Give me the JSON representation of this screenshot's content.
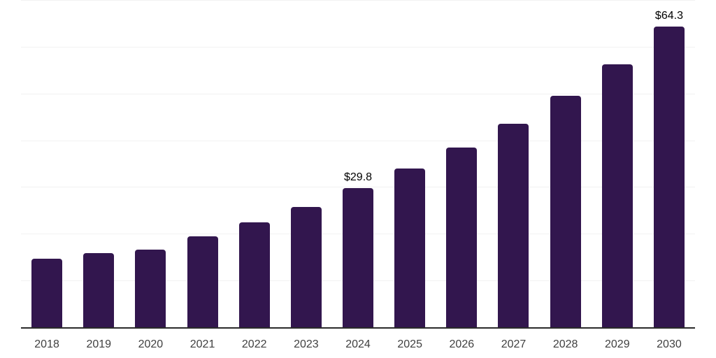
{
  "chart_data": {
    "type": "bar",
    "title": "",
    "categories": [
      "2018",
      "2019",
      "2020",
      "2021",
      "2022",
      "2023",
      "2024",
      "2025",
      "2026",
      "2027",
      "2028",
      "2029",
      "2030"
    ],
    "values": [
      14.7,
      15.8,
      16.6,
      19.4,
      22.5,
      25.7,
      29.8,
      33.9,
      38.4,
      43.5,
      49.5,
      56.3,
      64.3
    ],
    "value_labels": [
      "",
      "",
      "",
      "",
      "",
      "",
      "$29.8",
      "",
      "",
      "",
      "",
      "",
      "$64.3"
    ],
    "xlabel": "",
    "ylabel": "",
    "ylim": [
      0,
      70
    ],
    "gridline_step": 10,
    "grid": true,
    "y_axis_tick_labels_visible": false,
    "legend": "none",
    "colors": {
      "bar": "#32164E",
      "axis_line": "#2B2B2B",
      "gridline": "#F2F2F2",
      "tick_label": "#404040",
      "value_label": "#000000",
      "background": "#FFFFFF"
    }
  }
}
